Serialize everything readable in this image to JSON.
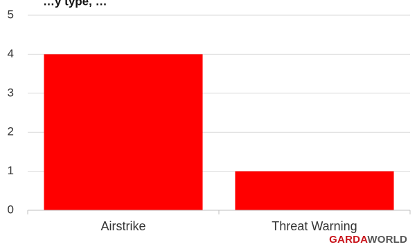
{
  "chart_data": {
    "type": "bar",
    "title": "…y type, …",
    "categories": [
      "Airstrike",
      "Threat Warning"
    ],
    "values": [
      4,
      1
    ],
    "ylim": [
      0,
      5
    ],
    "yticks": [
      0,
      1,
      2,
      3,
      4,
      5
    ],
    "xlabel": "",
    "ylabel": "",
    "grid": true,
    "legend": "none"
  },
  "colors": {
    "bar": "#ff0000",
    "grid": "#d9d9d9",
    "axis": "#bfbfbf",
    "brand_primary": "#c9141b",
    "brand_secondary": "#555555"
  },
  "branding": {
    "logo_part1": "GARDA",
    "logo_part2": "WORLD"
  }
}
